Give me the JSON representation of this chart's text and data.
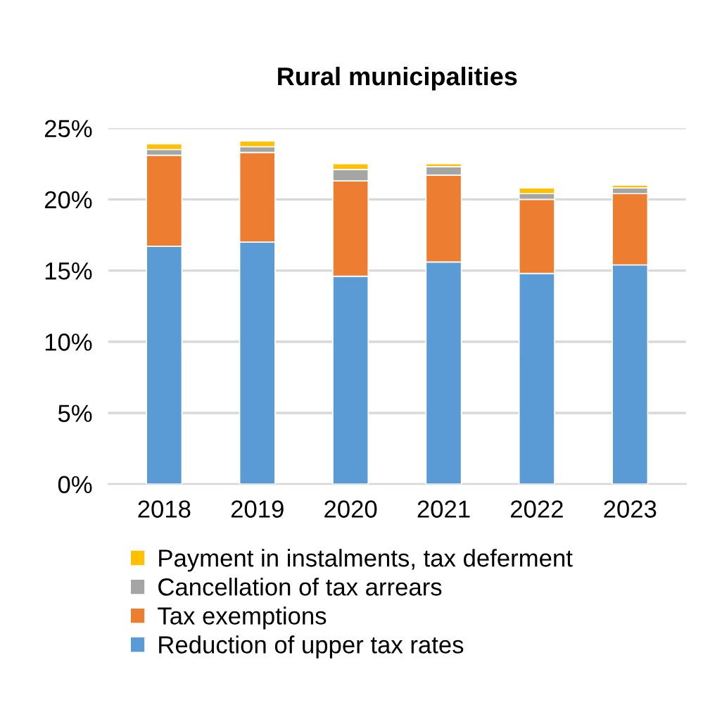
{
  "chart_data": {
    "type": "bar",
    "title": "Rural municipalities",
    "stacked": true,
    "categories": [
      "2018",
      "2019",
      "2020",
      "2021",
      "2022",
      "2023"
    ],
    "series": [
      {
        "name": "Reduction of upper tax rates",
        "color": "#5b9bd5",
        "values": [
          16.7,
          17.0,
          14.6,
          15.6,
          14.8,
          15.4
        ]
      },
      {
        "name": "Tax exemptions",
        "color": "#ed7d31",
        "values": [
          6.4,
          6.3,
          6.7,
          6.1,
          5.2,
          5.0
        ]
      },
      {
        "name": "Cancellation of tax arrears",
        "color": "#a5a5a5",
        "values": [
          0.4,
          0.4,
          0.8,
          0.6,
          0.4,
          0.4
        ]
      },
      {
        "name": "Payment in instalments, tax deferment",
        "color": "#ffc000",
        "values": [
          0.4,
          0.4,
          0.4,
          0.2,
          0.4,
          0.2
        ]
      }
    ],
    "ylim": [
      0,
      25
    ],
    "yticks": [
      {
        "value": 0,
        "label": "0%"
      },
      {
        "value": 5,
        "label": "5%"
      },
      {
        "value": 10,
        "label": "10%"
      },
      {
        "value": 15,
        "label": "15%"
      },
      {
        "value": 20,
        "label": "20%"
      },
      {
        "value": 25,
        "label": "25%"
      }
    ],
    "grid": "y",
    "legend": "bottom"
  }
}
